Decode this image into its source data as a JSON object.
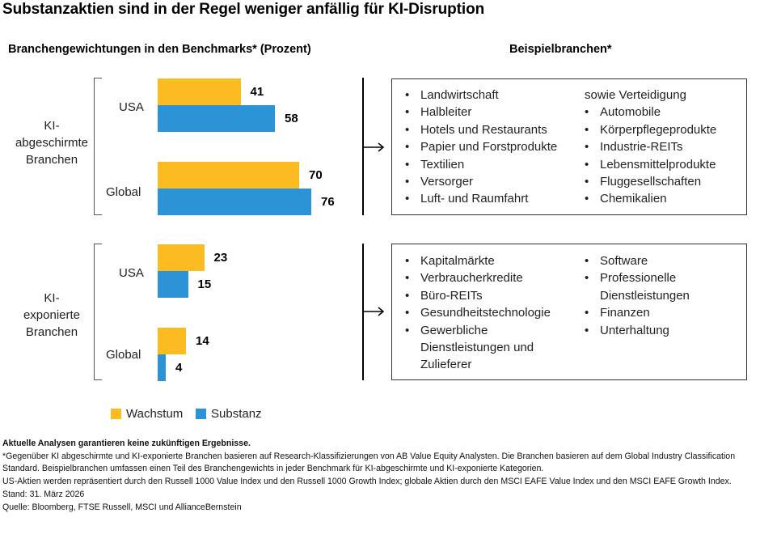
{
  "title": "Substanzaktien sind in der Regel weniger anfällig für KI-Disruption",
  "left_heading": "Branchengewichtungen in den Benchmarks* (Prozent)",
  "right_heading": "Beispielbranchen*",
  "colors": {
    "wachstum": "#fbbb21",
    "substanz": "#2c94d6"
  },
  "chart_data": {
    "type": "bar",
    "orientation": "horizontal",
    "groups": [
      {
        "label_lines": [
          "KI-",
          "abgeschirmte",
          "Branchen"
        ],
        "categories": [
          "USA",
          "Global"
        ],
        "series": [
          {
            "name": "Wachstum",
            "values": [
              41,
              70
            ]
          },
          {
            "name": "Substanz",
            "values": [
              58,
              76
            ]
          }
        ]
      },
      {
        "label_lines": [
          "KI-",
          "exponierte",
          "Branchen"
        ],
        "categories": [
          "USA",
          "Global"
        ],
        "series": [
          {
            "name": "Wachstum",
            "values": [
              23,
              14
            ]
          },
          {
            "name": "Substanz",
            "values": [
              15,
              4
            ]
          }
        ]
      }
    ],
    "legend": [
      "Wachstum",
      "Substanz"
    ],
    "legend_position": "bottom"
  },
  "examples": {
    "shielded": {
      "col1": [
        "Landwirtschaft",
        "Halbleiter",
        "Hotels und Restaurants",
        "Papier und Forstprodukte",
        "Textilien",
        "Versorger",
        "Luft- und Raumfahrt"
      ],
      "col2_intro": "sowie Verteidigung",
      "col2": [
        "Automobile",
        "Körperpflegeprodukte",
        "Industrie-REITs",
        "Lebensmittelprodukte",
        "Fluggesellschaften",
        "Chemikalien"
      ]
    },
    "exposed": {
      "col1": [
        "Kapitalmärkte",
        "Verbraucherkredite",
        "Büro-REITs",
        "Gesundheitstechnologie",
        "Gewerbliche Dienstleistungen und Zulieferer"
      ],
      "col2": [
        "Software",
        "Professionelle Dienstleistungen",
        "Finanzen",
        "Unterhaltung"
      ]
    }
  },
  "footer": {
    "disclaimer": "Aktuelle Analysen garantieren keine zukünftigen Ergebnisse.",
    "note1": "*Gegenüber KI abgeschirmte und KI-exponierte Branchen basieren auf Research-Klassifizierungen von AB Value Equity Analysten. Die Branchen basieren auf dem Global Industry Classification Standard. Beispielbranchen umfassen einen Teil des Branchengewichts in jeder Benchmark für KI-abgeschirmte und KI-exponierte Kategorien.",
    "note2": "US-Aktien werden repräsentiert durch den Russell 1000 Value Index und den Russell 1000 Growth Index; globale Aktien durch den MSCI EAFE Value Index und den MSCI EAFE Growth Index.",
    "date": "Stand: 31. März 2026",
    "source": "Quelle: Bloomberg, FTSE Russell, MSCI und AllianceBernstein"
  }
}
